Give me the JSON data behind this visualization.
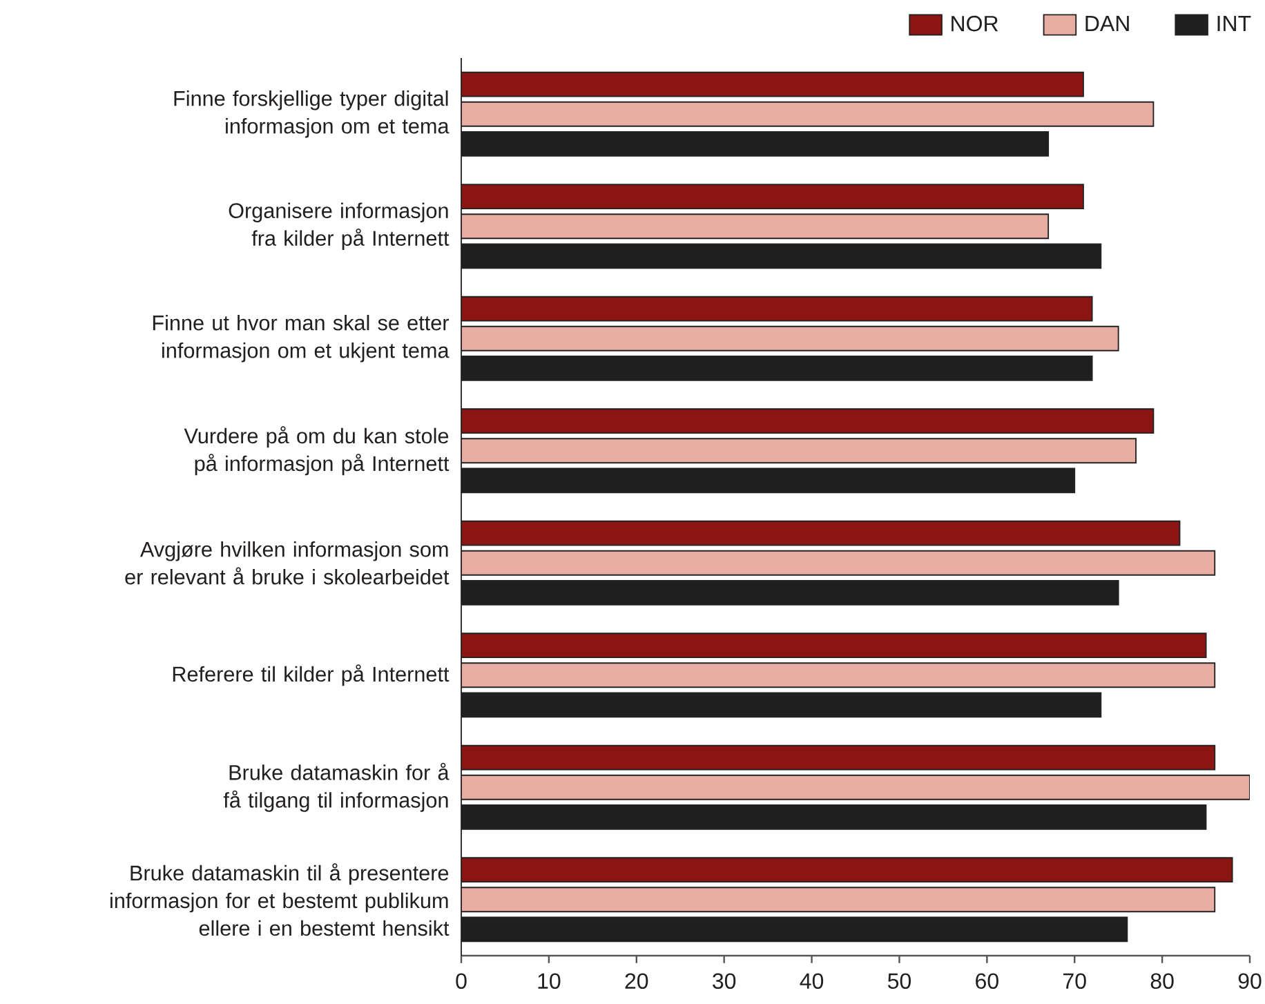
{
  "chart_data": {
    "type": "bar",
    "orientation": "horizontal",
    "categories": [
      "Finne forskjellige typer digital informasjon om et tema",
      "Organisere informasjon fra kilder på Internett",
      "Finne ut hvor man skal se etter informasjon om et ukjent tema",
      "Vurdere på om du kan stole på informasjon på Internett",
      "Avgjøre hvilken informasjon som er relevant å bruke i skolearbeidet",
      "Referere til kilder på Internett",
      "Bruke datamaskin for å få tilgang til informasjon",
      "Bruke datamaskin til å presentere informasjon for et bestemt publikum ellere i en bestemt hensikt"
    ],
    "series": [
      {
        "name": "NOR",
        "color": "#8b1513",
        "values": [
          71,
          71,
          72,
          79,
          82,
          85,
          86,
          88
        ]
      },
      {
        "name": "DAN",
        "color": "#e8aea3",
        "values": [
          79,
          67,
          75,
          77,
          86,
          86,
          90,
          86
        ]
      },
      {
        "name": "INT",
        "color": "#1f1f1f",
        "values": [
          67,
          73,
          72,
          70,
          75,
          73,
          85,
          76
        ]
      }
    ],
    "xlim": [
      0,
      90
    ],
    "xticks": [
      0,
      10,
      20,
      30,
      40,
      50,
      60,
      70,
      80,
      90
    ],
    "legend": "top right"
  }
}
